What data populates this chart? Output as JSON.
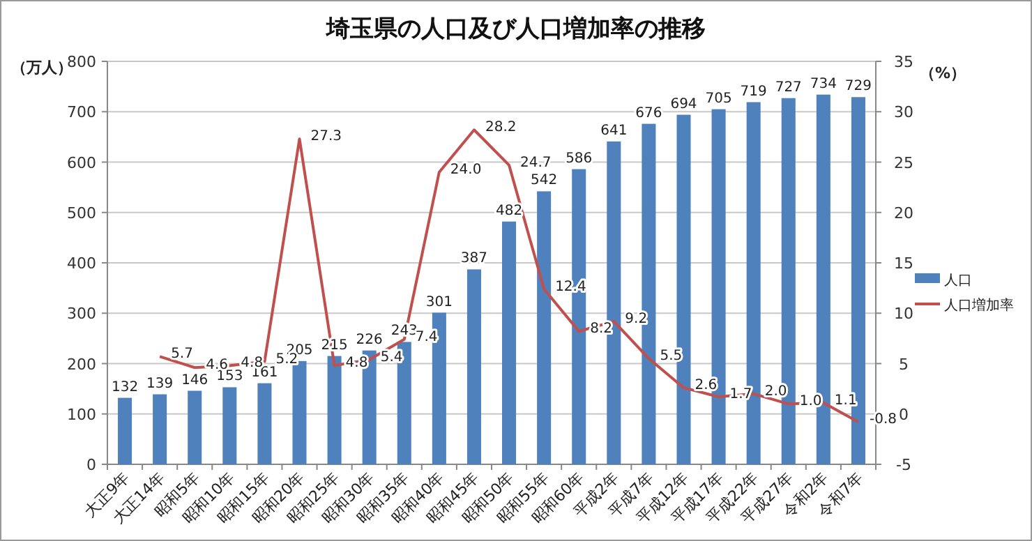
{
  "chart_data": {
    "type": "bar",
    "title": "埼玉県の人口及び人口増加率の推移",
    "categories": [
      "大正9年",
      "大正14年",
      "昭和5年",
      "昭和10年",
      "昭和15年",
      "昭和20年",
      "昭和25年",
      "昭和30年",
      "昭和35年",
      "昭和40年",
      "昭和45年",
      "昭和50年",
      "昭和55年",
      "昭和60年",
      "平成2年",
      "平成7年",
      "平成12年",
      "平成17年",
      "平成22年",
      "平成27年",
      "令和2年",
      "令和7年"
    ],
    "series": [
      {
        "name": "人口",
        "color": "#4f81bd",
        "values": [
          132,
          139,
          146,
          153,
          161,
          205,
          215,
          226,
          243,
          301,
          387,
          482,
          542,
          586,
          641,
          676,
          694,
          705,
          719,
          727,
          734,
          729
        ]
      },
      {
        "name": "人口増加率",
        "type": "line",
        "axis": "y2",
        "color": "#c0504d",
        "values": [
          null,
          5.7,
          4.6,
          4.8,
          5.2,
          27.3,
          4.8,
          5.4,
          7.4,
          24.0,
          28.2,
          24.7,
          12.4,
          8.2,
          9.2,
          5.5,
          2.6,
          1.7,
          2.0,
          1.0,
          1.1,
          -0.8
        ],
        "value_labels": [
          null,
          "5.7",
          "4.6",
          "4.8",
          "5.2",
          "27.3",
          "4.8",
          "5.4",
          "7.4",
          "24.0",
          "28.2",
          "24.7",
          "12.4",
          "8.2",
          "9.2",
          "5.5",
          "2.6",
          "1.7",
          "2.0",
          "1.0",
          "1.1",
          "-0.8"
        ]
      }
    ],
    "ylabel": "（万人）",
    "y2label": "（%）",
    "ylim": [
      0,
      800
    ],
    "yticks": [
      0,
      100,
      200,
      300,
      400,
      500,
      600,
      700,
      800
    ],
    "y2lim": [
      -5,
      35
    ],
    "y2ticks": [
      -5,
      0,
      5,
      10,
      15,
      20,
      25,
      30,
      35
    ],
    "grid": "y",
    "legend": "right",
    "data_labels": true
  }
}
